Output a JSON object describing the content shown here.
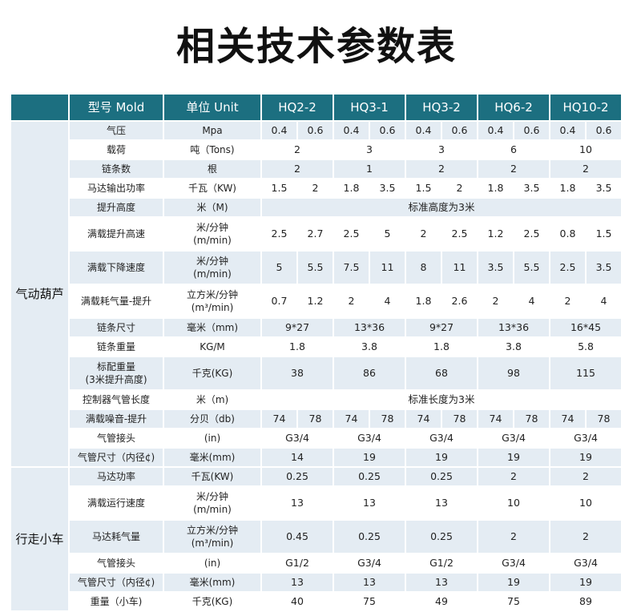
{
  "title": "相关技术参数表",
  "header": {
    "model": "型号 Mold",
    "unit": "单位 Unit",
    "models": [
      "HQ2-2",
      "HQ3-1",
      "HQ3-2",
      "HQ6-2",
      "HQ10-2"
    ]
  },
  "sections": [
    {
      "name": "气动葫芦",
      "rows": [
        {
          "label": "气压",
          "unit": "Mpa",
          "values": [
            "0.4",
            "0.6",
            "0.4",
            "0.6",
            "0.4",
            "0.6",
            "0.4",
            "0.6",
            "0.4",
            "0.6"
          ]
        },
        {
          "label": "载荷",
          "unit": "吨（Tons)",
          "values": [
            "2",
            "3",
            "3",
            "6",
            "10"
          ]
        },
        {
          "label": "链条数",
          "unit": "根",
          "values": [
            "2",
            "1",
            "2",
            "2",
            "2"
          ]
        },
        {
          "label": "马达输出功率",
          "unit": "千瓦（KW)",
          "values": [
            "1.5",
            "2",
            "1.8",
            "3.5",
            "1.5",
            "2",
            "1.8",
            "3.5",
            "1.8",
            "3.5"
          ]
        },
        {
          "label": "提升高度",
          "unit": "米（M)",
          "values": [
            "标准高度为3米"
          ]
        },
        {
          "label": "满载提升高速",
          "unit": "米/分钟\n(m/min)",
          "tall": true,
          "values": [
            "2.5",
            "2.7",
            "2.5",
            "5",
            "2",
            "2.5",
            "1.2",
            "2.5",
            "0.8",
            "1.5"
          ]
        },
        {
          "label": "满载下降速度",
          "unit": "米/分钟\n(m/min)",
          "tall": true,
          "values": [
            "5",
            "5.5",
            "7.5",
            "11",
            "8",
            "11",
            "3.5",
            "5.5",
            "2.5",
            "3.5"
          ]
        },
        {
          "label": "满载耗气量-提升",
          "unit": "立方米/分钟\n(m³/min)",
          "tall": true,
          "values": [
            "0.7",
            "1.2",
            "2",
            "4",
            "1.8",
            "2.6",
            "2",
            "4",
            "2",
            "4"
          ]
        },
        {
          "label": "链条尺寸",
          "unit": "毫米（mm)",
          "values": [
            "9*27",
            "13*36",
            "9*27",
            "13*36",
            "16*45"
          ]
        },
        {
          "label": "链条重量",
          "unit": "KG/M",
          "values": [
            "1.8",
            "3.8",
            "1.8",
            "3.8",
            "5.8"
          ]
        },
        {
          "label": "标配重量\n(3米提升高度)",
          "unit": "千克(KG)",
          "tall": true,
          "values": [
            "38",
            "86",
            "68",
            "98",
            "115"
          ]
        },
        {
          "label": "控制器气管长度",
          "unit": "米（m)",
          "values": [
            "标准长度为3米"
          ]
        },
        {
          "label": "满载噪音-提升",
          "unit": "分贝（db)",
          "values": [
            "74",
            "78",
            "74",
            "78",
            "74",
            "78",
            "74",
            "78",
            "74",
            "78"
          ]
        },
        {
          "label": "气管接头",
          "unit": "(in)",
          "values": [
            "G3/4",
            "G3/4",
            "G3/4",
            "G3/4",
            "G3/4"
          ]
        },
        {
          "label": "气管尺寸（内径¢)",
          "unit": "毫米(mm)",
          "values": [
            "14",
            "19",
            "19",
            "19",
            "19"
          ]
        }
      ]
    },
    {
      "name": "行走小车",
      "rows": [
        {
          "label": "马达功率",
          "unit": "千瓦(KW)",
          "values": [
            "0.25",
            "0.25",
            "0.25",
            "2",
            "2"
          ]
        },
        {
          "label": "满载运行速度",
          "unit": "米/分钟\n(m/min)",
          "tall": true,
          "values": [
            "13",
            "13",
            "13",
            "10",
            "10"
          ]
        },
        {
          "label": "马达耗气量",
          "unit": "立方米/分钟\n(m³/min)",
          "tall": true,
          "values": [
            "0.45",
            "0.25",
            "0.25",
            "2",
            "2"
          ]
        },
        {
          "label": "气管接头",
          "unit": "(in)",
          "values": [
            "G1/2",
            "G3/4",
            "G1/2",
            "G3/4",
            "G3/4"
          ]
        },
        {
          "label": "气管尺寸（内径¢)",
          "unit": "毫米(mm)",
          "values": [
            "13",
            "13",
            "13",
            "19",
            "19"
          ]
        },
        {
          "label": "重量（小车)",
          "unit": "千克(KG)",
          "values": [
            "40",
            "75",
            "49",
            "75",
            "89"
          ]
        }
      ]
    }
  ]
}
